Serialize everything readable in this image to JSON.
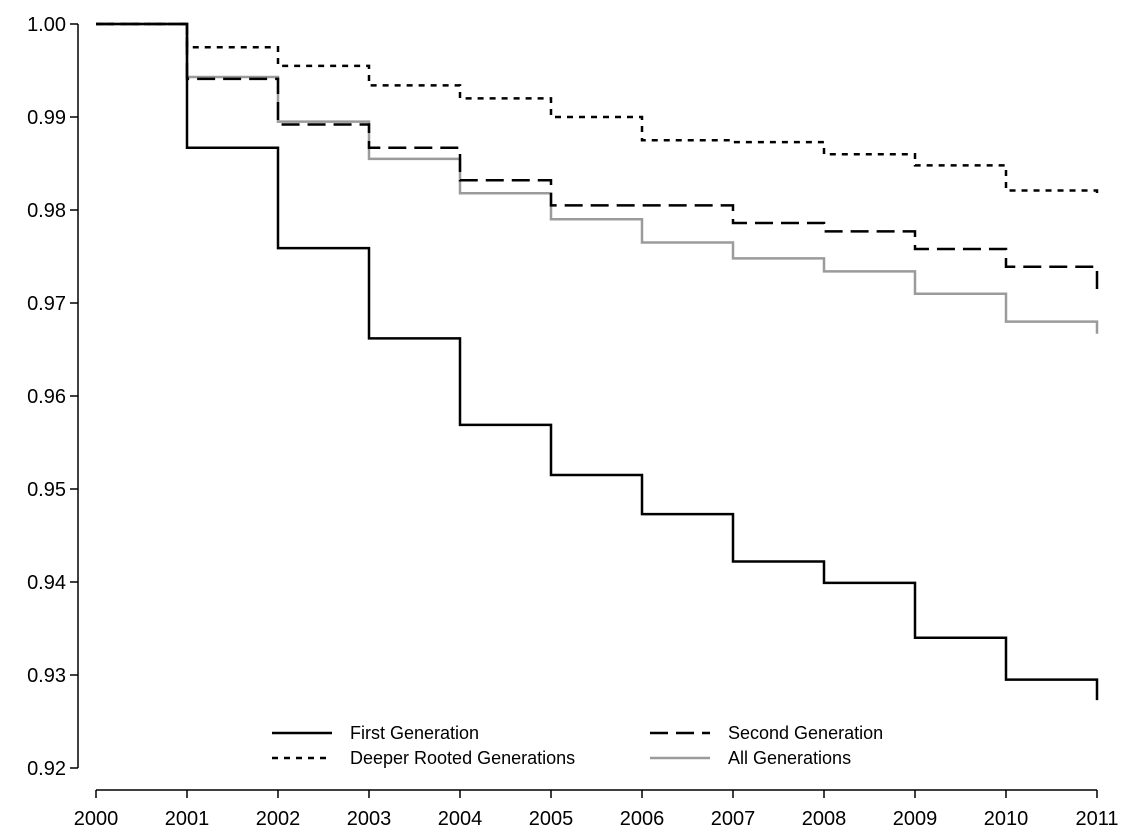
{
  "chart_data": {
    "type": "line",
    "step": true,
    "title": "",
    "xlabel": "",
    "ylabel": "",
    "xlim": [
      2000,
      2011
    ],
    "ylim": [
      0.92,
      1.0
    ],
    "xticks": [
      "2000",
      "2001",
      "2002",
      "2003",
      "2004",
      "2005",
      "2006",
      "2007",
      "2008",
      "2009",
      "2010",
      "2011"
    ],
    "yticks": [
      "0.92",
      "0.93",
      "0.94",
      "0.95",
      "0.96",
      "0.97",
      "0.98",
      "0.99",
      "1.00"
    ],
    "grid": false,
    "legend_position": "bottom-center",
    "series": [
      {
        "name": "First Generation",
        "color": "#000000",
        "dash": "solid",
        "x": [
          2000,
          2001,
          2002,
          2003,
          2004,
          2005,
          2006,
          2007,
          2008,
          2009,
          2010,
          2011
        ],
        "y": [
          1.0,
          0.9867,
          0.9759,
          0.9662,
          0.9569,
          0.9515,
          0.9473,
          0.9422,
          0.9399,
          0.934,
          0.9295,
          0.9273
        ]
      },
      {
        "name": "Second Generation",
        "color": "#000000",
        "dash": "long",
        "x": [
          2000,
          2001,
          2002,
          2003,
          2004,
          2005,
          2006,
          2007,
          2008,
          2009,
          2010,
          2011
        ],
        "y": [
          1.0,
          0.9941,
          0.9892,
          0.9867,
          0.9832,
          0.9805,
          0.9805,
          0.9786,
          0.9777,
          0.9758,
          0.9739,
          0.971
        ]
      },
      {
        "name": "Deeper Rooted Generations",
        "color": "#000000",
        "dash": "short",
        "x": [
          2000,
          2001,
          2002,
          2003,
          2004,
          2005,
          2006,
          2007,
          2008,
          2009,
          2010,
          2011
        ],
        "y": [
          1.0,
          0.9975,
          0.9955,
          0.9934,
          0.992,
          0.99,
          0.9875,
          0.9873,
          0.986,
          0.9848,
          0.9821,
          0.9815
        ]
      },
      {
        "name": "All Generations",
        "color": "#9b9b9b",
        "dash": "solid",
        "x": [
          2000,
          2001,
          2002,
          2003,
          2004,
          2005,
          2006,
          2007,
          2008,
          2009,
          2010,
          2011
        ],
        "y": [
          1.0,
          0.9943,
          0.9895,
          0.9855,
          0.9818,
          0.979,
          0.9765,
          0.9748,
          0.9734,
          0.971,
          0.968,
          0.9667
        ]
      }
    ]
  }
}
